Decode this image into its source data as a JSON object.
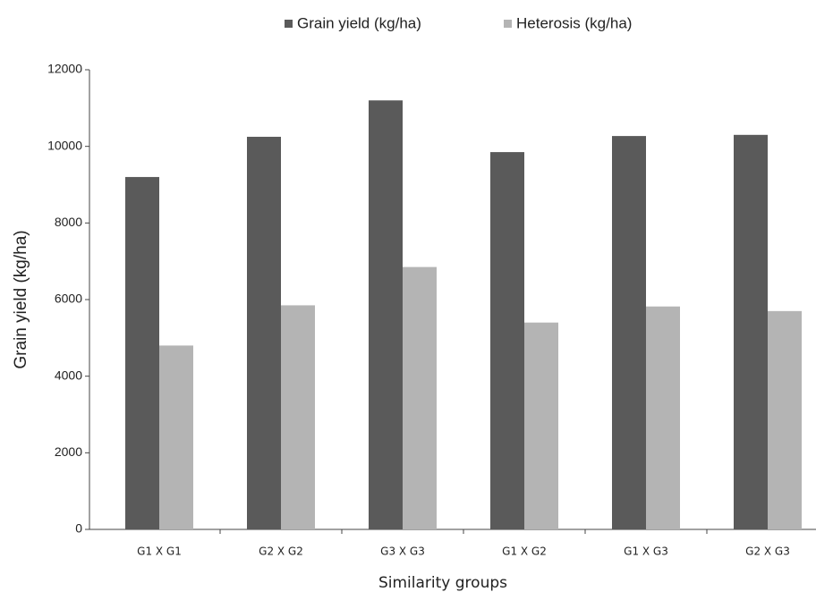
{
  "chart_data": {
    "type": "bar",
    "x_label": "Similarity groups",
    "y_label": "Grain yield (kg/ha)",
    "categories": [
      "G1 X G1",
      "G2 X G2",
      "G3 X G3",
      "G1 X G2",
      "G1 X G3",
      "G2 X G3"
    ],
    "series": [
      {
        "name": "Grain yield (kg/ha)",
        "color": "#5a5a5a",
        "values": [
          9200,
          10250,
          11200,
          9850,
          10270,
          10300
        ]
      },
      {
        "name": "Heterosis (kg/ha)",
        "color": "#b4b4b4",
        "values": [
          4800,
          5850,
          6850,
          5400,
          5820,
          5700
        ]
      }
    ],
    "ylim": [
      0,
      12000
    ],
    "yticks": [
      0,
      2000,
      4000,
      6000,
      8000,
      10000,
      12000
    ],
    "grid": false,
    "legend": "top"
  }
}
